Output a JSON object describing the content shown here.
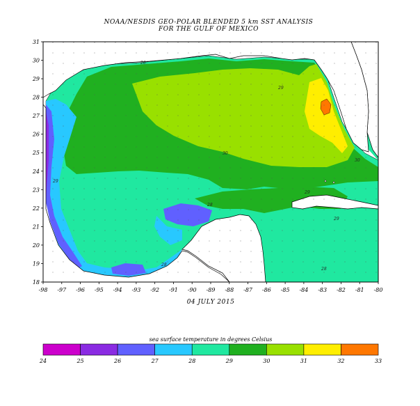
{
  "title": {
    "line1": "NOAA/NESDIS GEO-POLAR BLENDED 5 km SST ANALYSIS",
    "line2": "FOR THE GULF OF MEXICO"
  },
  "date_label": "04 JULY 2015",
  "axes": {
    "lon_labels": [
      "-98",
      "-97",
      "-96",
      "-95",
      "-94",
      "-93",
      "-92",
      "-91",
      "-90",
      "-89",
      "-88",
      "-87",
      "-86",
      "-85",
      "-84",
      "-83",
      "-82",
      "-81",
      "-80"
    ],
    "lat_labels": [
      "18",
      "19",
      "20",
      "21",
      "22",
      "23",
      "24",
      "25",
      "26",
      "27",
      "28",
      "29",
      "30",
      "31"
    ]
  },
  "colorbar": {
    "title": "sea surface temperature in degrees Celsius",
    "labels": [
      "24",
      "25",
      "26",
      "27",
      "28",
      "29",
      "30",
      "31",
      "32",
      "33"
    ],
    "colors": [
      "#cc00cc",
      "#8a2be2",
      "#6060ff",
      "#28c8ff",
      "#20e8a0",
      "#20b020",
      "#99e000",
      "#ffee00",
      "#ff7700"
    ]
  },
  "contour_labels": [
    "28",
    "29",
    "30",
    "29",
    "30",
    "28",
    "28",
    "29",
    "29",
    "28"
  ]
}
